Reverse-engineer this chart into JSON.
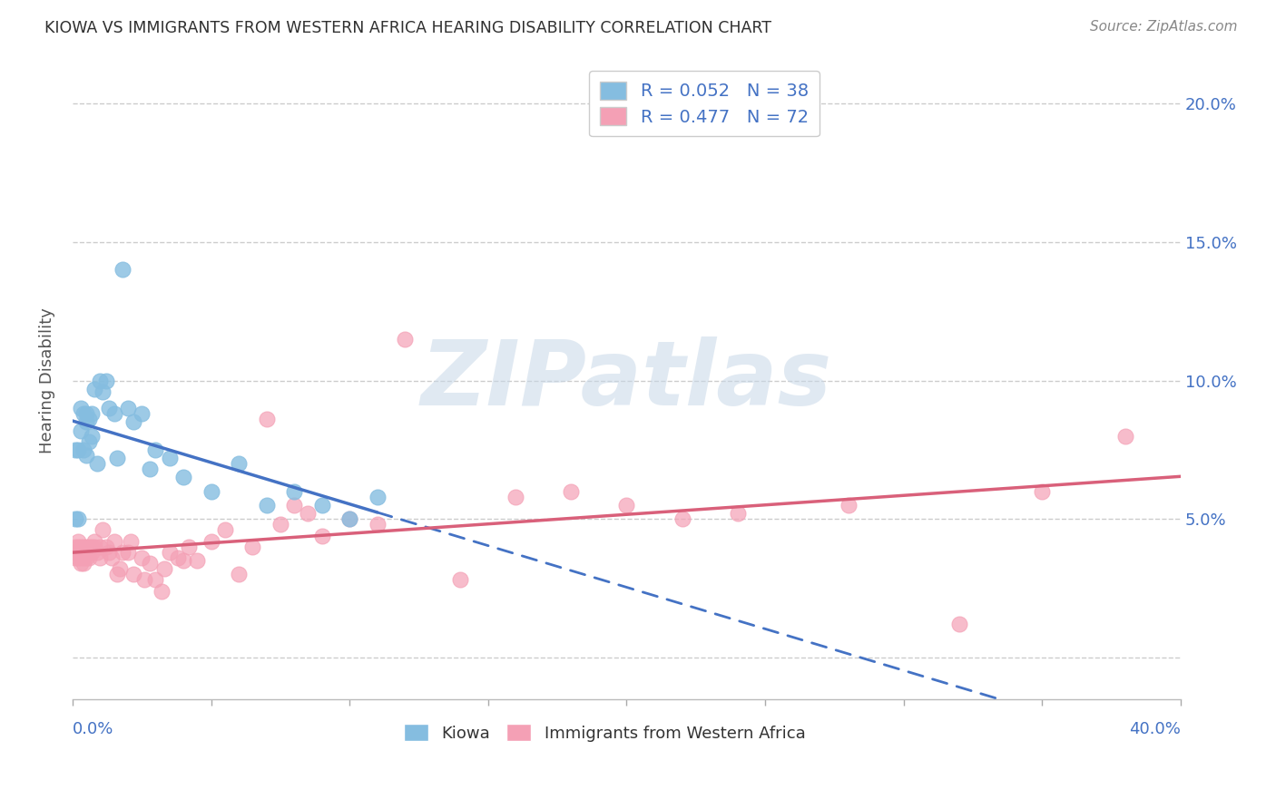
{
  "title": "KIOWA VS IMMIGRANTS FROM WESTERN AFRICA HEARING DISABILITY CORRELATION CHART",
  "source": "Source: ZipAtlas.com",
  "ylabel": "Hearing Disability",
  "xlim": [
    0,
    0.4
  ],
  "ylim": [
    -0.015,
    0.215
  ],
  "ytick_values": [
    0.0,
    0.05,
    0.1,
    0.15,
    0.2
  ],
  "ytick_labels": [
    "",
    "5.0%",
    "10.0%",
    "15.0%",
    "20.0%"
  ],
  "legend_label1": "R = 0.052   N = 38",
  "legend_label2": "R = 0.477   N = 72",
  "legend_label_bottom1": "Kiowa",
  "legend_label_bottom2": "Immigrants from Western Africa",
  "color_blue": "#85bde0",
  "color_pink": "#f4a0b5",
  "color_blue_line": "#4472c4",
  "color_pink_line": "#d9607a",
  "color_axis": "#4472c4",
  "watermark_text": "ZIPatlas",
  "background_color": "#ffffff",
  "grid_color": "#cccccc",
  "kiowa_x": [
    0.001,
    0.001,
    0.002,
    0.002,
    0.003,
    0.003,
    0.004,
    0.004,
    0.005,
    0.005,
    0.005,
    0.006,
    0.006,
    0.007,
    0.007,
    0.008,
    0.009,
    0.01,
    0.011,
    0.012,
    0.013,
    0.015,
    0.016,
    0.018,
    0.02,
    0.022,
    0.025,
    0.028,
    0.03,
    0.035,
    0.04,
    0.05,
    0.06,
    0.07,
    0.08,
    0.09,
    0.1,
    0.11
  ],
  "kiowa_y": [
    0.075,
    0.05,
    0.075,
    0.05,
    0.09,
    0.082,
    0.088,
    0.075,
    0.088,
    0.085,
    0.073,
    0.086,
    0.078,
    0.088,
    0.08,
    0.097,
    0.07,
    0.1,
    0.096,
    0.1,
    0.09,
    0.088,
    0.072,
    0.14,
    0.09,
    0.085,
    0.088,
    0.068,
    0.075,
    0.072,
    0.065,
    0.06,
    0.07,
    0.055,
    0.06,
    0.055,
    0.05,
    0.058
  ],
  "africa_x": [
    0.001,
    0.001,
    0.001,
    0.002,
    0.002,
    0.002,
    0.002,
    0.003,
    0.003,
    0.003,
    0.003,
    0.004,
    0.004,
    0.004,
    0.004,
    0.005,
    0.005,
    0.005,
    0.006,
    0.006,
    0.006,
    0.007,
    0.007,
    0.008,
    0.008,
    0.009,
    0.01,
    0.01,
    0.011,
    0.012,
    0.013,
    0.014,
    0.015,
    0.016,
    0.017,
    0.018,
    0.02,
    0.021,
    0.022,
    0.025,
    0.026,
    0.028,
    0.03,
    0.032,
    0.033,
    0.035,
    0.038,
    0.04,
    0.042,
    0.045,
    0.05,
    0.055,
    0.06,
    0.065,
    0.07,
    0.075,
    0.08,
    0.085,
    0.09,
    0.1,
    0.11,
    0.12,
    0.14,
    0.16,
    0.18,
    0.2,
    0.22,
    0.24,
    0.28,
    0.32,
    0.35,
    0.38
  ],
  "africa_y": [
    0.04,
    0.038,
    0.036,
    0.042,
    0.04,
    0.038,
    0.036,
    0.04,
    0.038,
    0.036,
    0.034,
    0.04,
    0.038,
    0.036,
    0.034,
    0.04,
    0.038,
    0.036,
    0.04,
    0.038,
    0.036,
    0.04,
    0.038,
    0.042,
    0.04,
    0.038,
    0.04,
    0.036,
    0.046,
    0.04,
    0.038,
    0.036,
    0.042,
    0.03,
    0.032,
    0.038,
    0.038,
    0.042,
    0.03,
    0.036,
    0.028,
    0.034,
    0.028,
    0.024,
    0.032,
    0.038,
    0.036,
    0.035,
    0.04,
    0.035,
    0.042,
    0.046,
    0.03,
    0.04,
    0.086,
    0.048,
    0.055,
    0.052,
    0.044,
    0.05,
    0.048,
    0.115,
    0.028,
    0.058,
    0.06,
    0.055,
    0.05,
    0.052,
    0.055,
    0.012,
    0.06,
    0.08
  ]
}
